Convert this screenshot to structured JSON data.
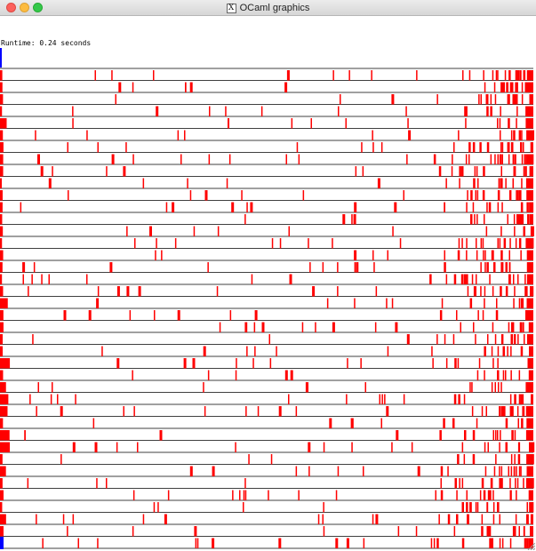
{
  "window": {
    "title": "OCaml graphics",
    "icon": "x11-icon",
    "icon_glyph": "X"
  },
  "canvas": {
    "runtime_text": "Runtime: 0.24 seconds",
    "line_color": "#000000",
    "cell_fill_color": "#ff0000",
    "accent_color": "#0000ff",
    "row_count": 40
  }
}
